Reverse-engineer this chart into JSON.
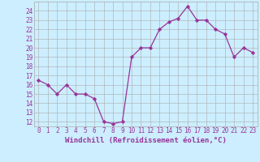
{
  "x": [
    0,
    1,
    2,
    3,
    4,
    5,
    6,
    7,
    8,
    9,
    10,
    11,
    12,
    13,
    14,
    15,
    16,
    17,
    18,
    19,
    20,
    21,
    22,
    23
  ],
  "y": [
    16.5,
    16.0,
    15.0,
    16.0,
    15.0,
    15.0,
    14.5,
    12.0,
    11.8,
    12.0,
    19.0,
    20.0,
    20.0,
    22.0,
    22.8,
    23.2,
    24.5,
    23.0,
    23.0,
    22.0,
    21.5,
    19.0,
    20.0,
    19.5
  ],
  "line_color": "#993399",
  "marker": "D",
  "marker_size": 2.2,
  "bg_color": "#cceeff",
  "grid_color": "#aaaaaa",
  "xlabel": "Windchill (Refroidissement éolien,°C)",
  "xlabel_color": "#993399",
  "tick_color": "#993399",
  "ylim": [
    11.5,
    25.0
  ],
  "xlim": [
    -0.5,
    23.5
  ],
  "yticks": [
    12,
    13,
    14,
    15,
    16,
    17,
    18,
    19,
    20,
    21,
    22,
    23,
    24
  ],
  "xticks": [
    0,
    1,
    2,
    3,
    4,
    5,
    6,
    7,
    8,
    9,
    10,
    11,
    12,
    13,
    14,
    15,
    16,
    17,
    18,
    19,
    20,
    21,
    22,
    23
  ],
  "tick_fontsize": 5.5,
  "xlabel_fontsize": 6.5,
  "linewidth": 0.9
}
